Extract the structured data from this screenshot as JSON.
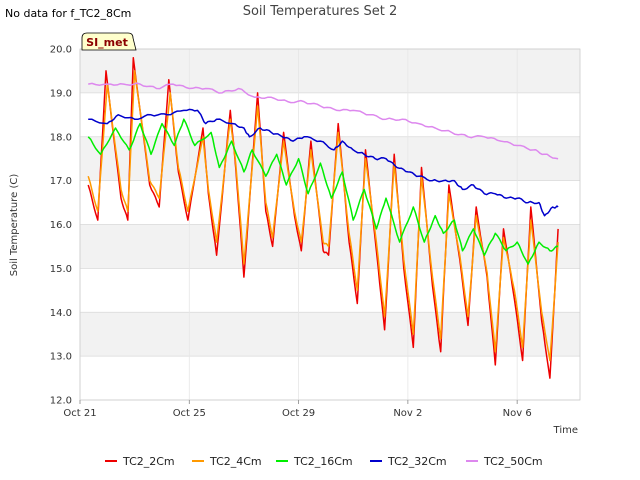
{
  "no_data_text": "No data for f_TC2_8Cm",
  "badge_text": "SI_met",
  "chart_data": {
    "type": "line",
    "title": "Soil Temperatures Set 2",
    "xlabel": "Time",
    "ylabel": "Soil Temperature (C)",
    "xlim": [
      0,
      18.3
    ],
    "ylim": [
      12.0,
      20.0
    ],
    "yticks": [
      12.0,
      13.0,
      14.0,
      15.0,
      16.0,
      17.0,
      18.0,
      19.0,
      20.0
    ],
    "ytick_labels": [
      "12.0",
      "13.0",
      "14.0",
      "15.0",
      "16.0",
      "17.0",
      "18.0",
      "19.0",
      "20.0"
    ],
    "xticks": [
      0,
      4,
      8,
      12,
      16
    ],
    "xtick_labels": [
      "Oct 21",
      "Oct 25",
      "Oct 29",
      "Nov 2",
      "Nov 6"
    ],
    "grid": true,
    "legend_position": "bottom",
    "series": [
      {
        "name": "TC2_2Cm",
        "color": "#ee0000",
        "x": [
          0.3,
          0.65,
          0.95,
          1.5,
          1.75,
          1.95,
          2.55,
          2.9,
          3.25,
          3.6,
          3.95,
          4.5,
          4.7,
          5.0,
          5.5,
          5.7,
          6.0,
          6.5,
          6.8,
          7.05,
          7.45,
          7.85,
          8.1,
          8.45,
          8.9,
          9.1,
          9.45,
          9.85,
          10.15,
          10.45,
          10.85,
          11.15,
          11.5,
          11.85,
          12.2,
          12.5,
          12.9,
          13.2,
          13.5,
          13.9,
          14.2,
          14.5,
          14.9,
          15.2,
          15.5,
          15.9,
          16.2,
          16.5,
          16.9,
          17.2,
          17.5
        ],
        "y": [
          16.9,
          16.1,
          19.5,
          16.6,
          16.1,
          19.8,
          16.9,
          16.4,
          19.3,
          17.2,
          16.1,
          18.2,
          16.7,
          15.3,
          18.6,
          17.3,
          14.8,
          19.0,
          16.3,
          15.5,
          18.1,
          16.2,
          15.4,
          17.9,
          15.4,
          15.3,
          18.3,
          15.6,
          14.2,
          17.7,
          15.4,
          13.6,
          17.6,
          15.0,
          13.2,
          17.3,
          14.6,
          13.1,
          16.9,
          15.2,
          13.7,
          16.4,
          14.8,
          12.8,
          15.9,
          14.3,
          12.9,
          16.4,
          13.8,
          12.5,
          15.9
        ]
      },
      {
        "name": "TC2_4Cm",
        "color": "#ff9900",
        "x": [
          0.3,
          0.65,
          1.0,
          1.5,
          1.75,
          2.0,
          2.55,
          2.9,
          3.3,
          3.6,
          3.95,
          4.5,
          4.7,
          5.0,
          5.5,
          5.7,
          6.0,
          6.5,
          6.8,
          7.05,
          7.45,
          7.85,
          8.1,
          8.45,
          8.9,
          9.1,
          9.45,
          9.85,
          10.15,
          10.45,
          10.85,
          11.15,
          11.5,
          11.85,
          12.2,
          12.5,
          12.9,
          13.2,
          13.5,
          13.9,
          14.2,
          14.5,
          14.9,
          15.2,
          15.5,
          15.9,
          16.2,
          16.5,
          16.9,
          17.2,
          17.5
        ],
        "y": [
          17.1,
          16.3,
          19.2,
          16.8,
          16.3,
          19.5,
          17.0,
          16.6,
          19.0,
          17.3,
          16.3,
          18.0,
          16.8,
          15.6,
          18.4,
          17.4,
          15.1,
          18.7,
          16.5,
          15.7,
          17.9,
          16.3,
          15.6,
          17.7,
          15.6,
          15.5,
          18.1,
          15.8,
          14.5,
          17.5,
          15.6,
          13.9,
          17.4,
          15.2,
          13.5,
          17.1,
          14.8,
          13.4,
          16.7,
          15.3,
          13.9,
          16.2,
          14.9,
          13.1,
          15.7,
          14.5,
          13.2,
          16.1,
          14.0,
          12.9,
          15.6
        ]
      },
      {
        "name": "TC2_16Cm",
        "color": "#00ee00",
        "x": [
          0.3,
          0.75,
          1.3,
          1.8,
          2.2,
          2.6,
          3.0,
          3.45,
          3.8,
          4.2,
          4.8,
          5.1,
          5.55,
          6.0,
          6.3,
          6.8,
          7.2,
          7.55,
          8.0,
          8.35,
          8.8,
          9.2,
          9.6,
          10.0,
          10.4,
          10.85,
          11.2,
          11.7,
          12.2,
          12.6,
          13.0,
          13.3,
          13.7,
          14.0,
          14.4,
          14.8,
          15.2,
          15.6,
          16.0,
          16.4,
          16.8,
          17.2,
          17.5
        ],
        "y": [
          18.0,
          17.6,
          18.2,
          17.7,
          18.3,
          17.6,
          18.3,
          17.8,
          18.4,
          17.8,
          18.1,
          17.3,
          17.9,
          17.2,
          17.7,
          17.1,
          17.6,
          16.9,
          17.5,
          16.7,
          17.4,
          16.6,
          17.2,
          16.1,
          16.8,
          15.9,
          16.6,
          15.6,
          16.4,
          15.6,
          16.2,
          15.8,
          16.1,
          15.4,
          15.9,
          15.3,
          15.8,
          15.4,
          15.6,
          15.1,
          15.6,
          15.4,
          15.5
        ]
      },
      {
        "name": "TC2_32Cm",
        "color": "#0000cc",
        "x": [
          0.3,
          1.0,
          1.4,
          2.0,
          2.6,
          3.2,
          3.8,
          4.3,
          4.6,
          5.0,
          5.6,
          6.0,
          6.2,
          6.6,
          7.0,
          7.4,
          7.8,
          8.2,
          8.8,
          9.3,
          9.6,
          10.0,
          10.4,
          10.8,
          11.2,
          11.6,
          12.0,
          12.4,
          12.9,
          13.3,
          13.7,
          14.0,
          14.4,
          14.8,
          15.2,
          15.6,
          16.0,
          16.4,
          16.8,
          17.0,
          17.3,
          17.5
        ],
        "y": [
          18.4,
          18.3,
          18.5,
          18.4,
          18.5,
          18.5,
          18.6,
          18.6,
          18.3,
          18.4,
          18.3,
          18.2,
          18.0,
          18.2,
          18.1,
          18.0,
          17.9,
          18.0,
          17.9,
          17.7,
          17.9,
          17.7,
          17.6,
          17.5,
          17.5,
          17.3,
          17.2,
          17.1,
          17.0,
          17.0,
          17.0,
          16.8,
          16.9,
          16.7,
          16.7,
          16.6,
          16.6,
          16.5,
          16.5,
          16.2,
          16.4,
          16.4
        ]
      },
      {
        "name": "TC2_50Cm",
        "color": "#dd88ee",
        "x": [
          0.3,
          1.0,
          1.6,
          2.2,
          2.8,
          3.4,
          4.0,
          4.6,
          5.2,
          5.8,
          6.4,
          7.0,
          7.6,
          8.2,
          8.8,
          9.4,
          10.0,
          10.6,
          11.2,
          11.8,
          12.4,
          13.0,
          13.6,
          14.2,
          14.8,
          15.4,
          16.0,
          16.6,
          17.0,
          17.5
        ],
        "y": [
          19.2,
          19.2,
          19.2,
          19.2,
          19.1,
          19.2,
          19.1,
          19.1,
          19.0,
          19.1,
          18.9,
          18.9,
          18.8,
          18.8,
          18.7,
          18.6,
          18.6,
          18.5,
          18.4,
          18.4,
          18.3,
          18.2,
          18.1,
          18.0,
          18.0,
          17.9,
          17.8,
          17.7,
          17.6,
          17.5
        ]
      }
    ]
  }
}
